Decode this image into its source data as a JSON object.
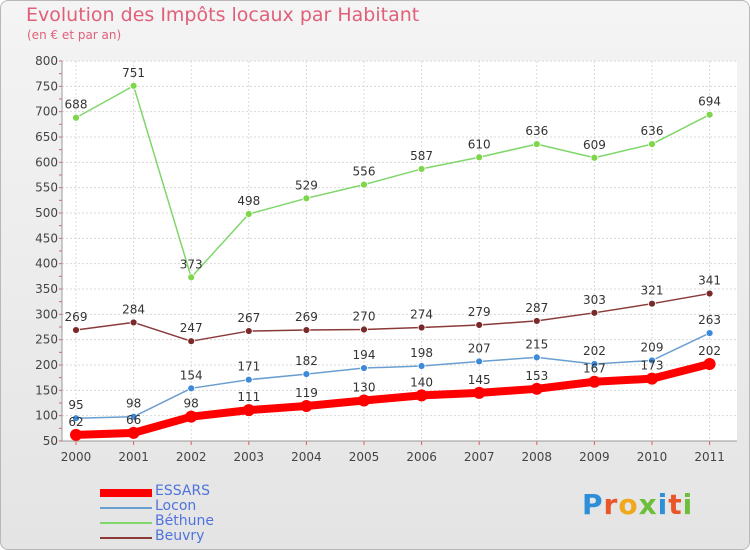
{
  "title": "Evolution des Impôts locaux par Habitant",
  "subtitle": "(en € et par an)",
  "logo": {
    "text": "Proxiti",
    "colors": [
      "#2e8fd8",
      "#e8562a",
      "#f0a81c",
      "#6cbf3a",
      "#2e8fd8",
      "#e8562a",
      "#6cbf3a"
    ]
  },
  "chart_data": {
    "type": "line",
    "x": [
      "2000",
      "2001",
      "2002",
      "2003",
      "2004",
      "2005",
      "2006",
      "2007",
      "2008",
      "2009",
      "2010",
      "2011"
    ],
    "ylim": [
      50,
      800
    ],
    "yticks": [
      "50",
      "100",
      "150",
      "200",
      "250",
      "300",
      "350",
      "400",
      "450",
      "500",
      "550",
      "600",
      "650",
      "700",
      "750",
      "800"
    ],
    "grid": true,
    "legend_position": "bottom-left",
    "series": [
      {
        "name": "Béthune",
        "color": "#7fd66a",
        "marker": "#7fd64a",
        "values": [
          688,
          751,
          373,
          498,
          529,
          556,
          587,
          610,
          636,
          609,
          636,
          694
        ],
        "labels": [
          "688",
          "751",
          "373",
          "498",
          "529",
          "556",
          "587",
          "610",
          "636",
          "609",
          "636",
          "694"
        ]
      },
      {
        "name": "Beuvry",
        "color": "#8b3a3a",
        "marker": "#7a2a2a",
        "values": [
          269,
          284,
          247,
          267,
          269,
          270,
          274,
          279,
          287,
          303,
          321,
          341
        ],
        "labels": [
          "269",
          "284",
          "247",
          "267",
          "269",
          "270",
          "274",
          "279",
          "287",
          "303",
          "321",
          "341"
        ]
      },
      {
        "name": "Locon",
        "color": "#6b9ed0",
        "marker": "#3d8ad8",
        "values": [
          95,
          98,
          154,
          171,
          182,
          194,
          198,
          207,
          215,
          202,
          209,
          263
        ],
        "labels": [
          "95",
          "98",
          "154",
          "171",
          "182",
          "194",
          "198",
          "207",
          "215",
          "202",
          "209",
          "263"
        ]
      },
      {
        "name": "ESSARS",
        "color": "#ff0000",
        "marker": "#ff0000",
        "values": [
          62,
          66,
          98,
          111,
          119,
          130,
          140,
          145,
          153,
          167,
          173,
          202
        ],
        "labels": [
          "62",
          "66",
          "98",
          "111",
          "119",
          "130",
          "140",
          "145",
          "153",
          "167",
          "173",
          "202"
        ]
      }
    ],
    "legend": [
      {
        "name": "ESSARS",
        "color": "#ff0000"
      },
      {
        "name": "Locon",
        "color": "#6b9ed0"
      },
      {
        "name": "Béthune",
        "color": "#7fd66a"
      },
      {
        "name": "Beuvry",
        "color": "#8b3a3a"
      }
    ]
  }
}
